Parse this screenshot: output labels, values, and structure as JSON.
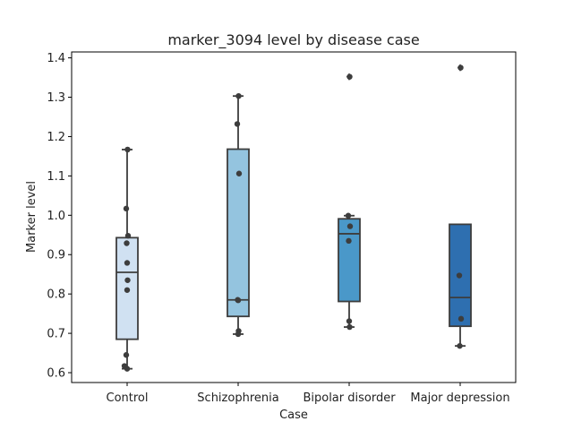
{
  "chart_data": {
    "type": "box",
    "title": "marker_3094 level by disease case",
    "xlabel": "Case",
    "ylabel": "Marker level",
    "ylim": [
      0.575,
      1.415
    ],
    "yticks": [
      0.6,
      0.7,
      0.8,
      0.9,
      1.0,
      1.1,
      1.2,
      1.3,
      1.4
    ],
    "ytick_labels": [
      "0.6",
      "0.7",
      "0.8",
      "0.9",
      "1.0",
      "1.1",
      "1.2",
      "1.3",
      "1.4"
    ],
    "grid": false,
    "categories": [
      "Control",
      "Schizophrenia",
      "Bipolar disorder",
      "Major depression"
    ],
    "colors": [
      "#d0e1f2",
      "#94c4df",
      "#4a98c9",
      "#2e6fb0"
    ],
    "boxes": [
      {
        "category": "Control",
        "whisker_low": 0.61,
        "q1": 0.685,
        "median": 0.855,
        "q3": 0.943,
        "whisker_high": 1.167,
        "outliers": []
      },
      {
        "category": "Schizophrenia",
        "whisker_low": 0.698,
        "q1": 0.743,
        "median": 0.785,
        "q3": 1.168,
        "whisker_high": 1.303,
        "outliers": []
      },
      {
        "category": "Bipolar disorder",
        "whisker_low": 0.716,
        "q1": 0.781,
        "median": 0.953,
        "q3": 0.991,
        "whisker_high": 0.999,
        "outliers": [
          1.352
        ]
      },
      {
        "category": "Major depression",
        "whisker_low": 0.668,
        "q1": 0.718,
        "median": 0.791,
        "q3": 0.977,
        "whisker_high": 0.977,
        "outliers": [
          1.375
        ]
      }
    ],
    "points": [
      [
        1.167,
        1.017,
        0.948,
        0.929,
        0.879,
        0.835,
        0.81,
        0.645,
        0.617,
        0.61
      ],
      [
        1.303,
        1.232,
        1.106,
        0.785,
        0.784,
        0.706,
        0.698
      ],
      [
        1.352,
        0.999,
        0.972,
        0.935,
        0.731,
        0.716
      ],
      [
        1.375,
        0.847,
        0.737,
        0.668
      ]
    ]
  }
}
